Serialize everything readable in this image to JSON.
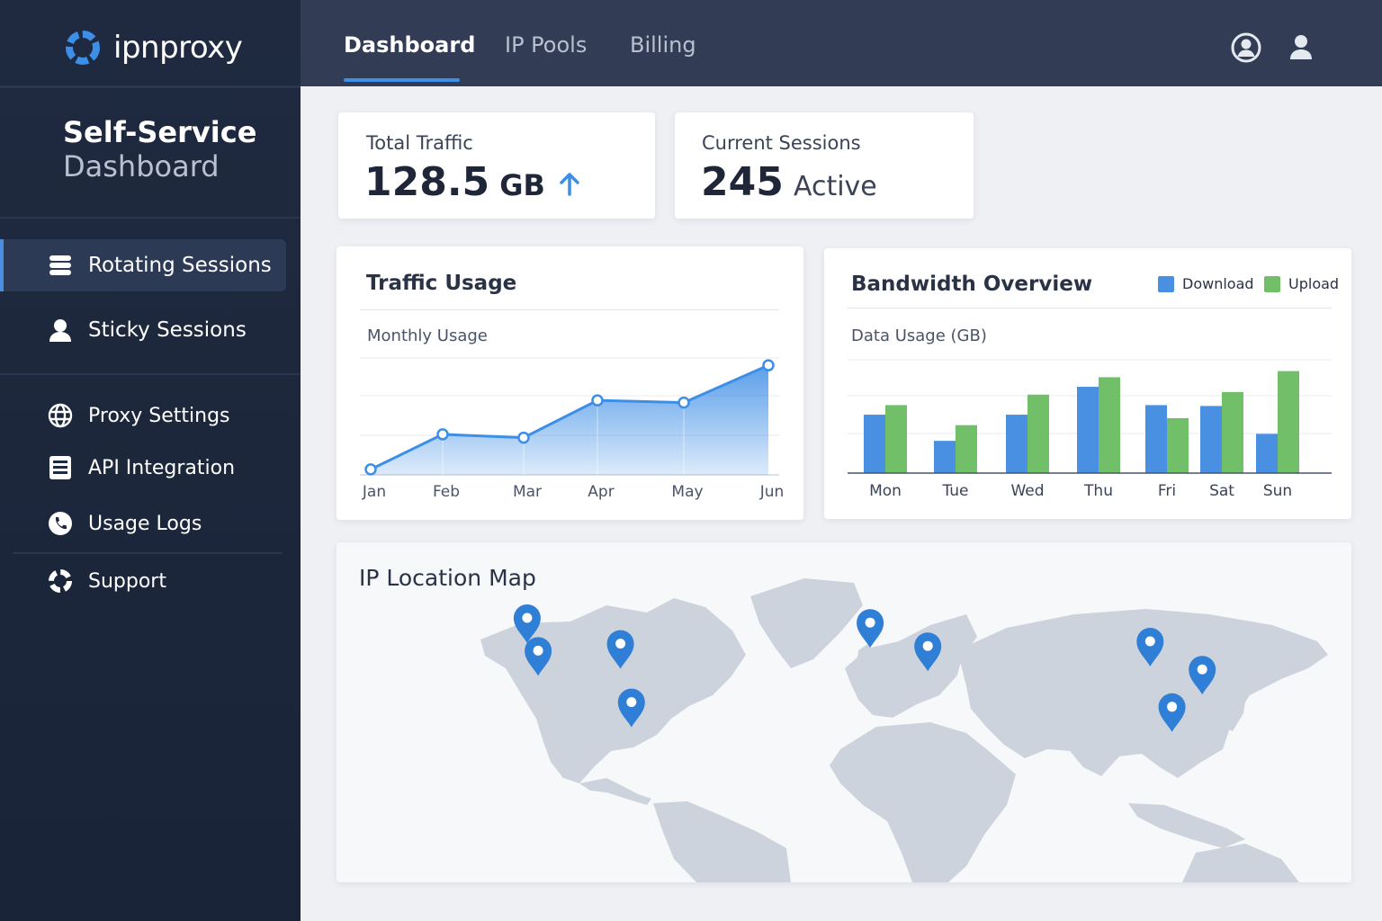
{
  "app": {
    "logo_text": "ipnproxy",
    "brand_color": "#3d8ee6"
  },
  "sidebar": {
    "title_line1": "Self-Service",
    "title_line2": "Dashboard",
    "primary_items": [
      {
        "label": "Rotating Sessions",
        "icon": "database-stack-icon",
        "active": true
      },
      {
        "label": "Sticky Sessions",
        "icon": "user-icon",
        "active": false
      }
    ],
    "secondary_items": [
      {
        "label": "Proxy Settings",
        "icon": "globe-icon"
      },
      {
        "label": "API Integration",
        "icon": "document-list-icon"
      },
      {
        "label": "Usage Logs",
        "icon": "phone-badge-icon"
      }
    ],
    "support": {
      "label": "Support",
      "icon": "lifebuoy-icon"
    }
  },
  "topbar": {
    "tabs": [
      {
        "label": "Dashboard",
        "active": true
      },
      {
        "label": "IP Pools",
        "active": false
      },
      {
        "label": "Billing",
        "active": false
      }
    ],
    "icons": [
      "account-circle-icon",
      "user-profile-icon"
    ]
  },
  "stats": {
    "total_traffic": {
      "label": "Total Traffic",
      "value": "128.5",
      "unit": "GB",
      "trend": "up"
    },
    "current_sessions": {
      "label": "Current Sessions",
      "value": "245",
      "unit": "Active"
    }
  },
  "traffic_usage": {
    "title": "Traffic Usage",
    "subtitle": "Monthly Usage"
  },
  "bandwidth": {
    "title": "Bandwidth Overview",
    "subtitle": "Data Usage (GB)",
    "legend": [
      {
        "label": "Download",
        "color": "#4a90e2"
      },
      {
        "label": "Upload",
        "color": "#72bf6a"
      }
    ]
  },
  "map": {
    "title": "IP Location Map",
    "pin_color": "#2f7fd6",
    "land_color": "#cdd3dc",
    "pins": [
      {
        "lat": 50,
        "lon": -122
      },
      {
        "lat": 36,
        "lon": -118
      },
      {
        "lat": 39,
        "lon": -88
      },
      {
        "lat": 14,
        "lon": -84
      },
      {
        "lat": 48,
        "lon": 3
      },
      {
        "lat": 38,
        "lon": 24
      },
      {
        "lat": 40,
        "lon": 105
      },
      {
        "lat": 28,
        "lon": 124
      },
      {
        "lat": 12,
        "lon": 113
      }
    ]
  },
  "chart_data": [
    {
      "type": "area",
      "title": "Traffic Usage",
      "subtitle": "Monthly Usage",
      "categories": [
        "Jan",
        "Feb",
        "Mar",
        "Apr",
        "May",
        "Jun"
      ],
      "values": [
        5,
        37,
        34,
        68,
        66,
        100
      ],
      "ylim": [
        0,
        110
      ],
      "grid": true,
      "color": "#3d8ee6"
    },
    {
      "type": "bar",
      "title": "Bandwidth Overview",
      "ylabel": "Data Usage (GB)",
      "categories": [
        "Mon",
        "Tue",
        "Wed",
        "Thu",
        "Fri",
        "Sat",
        "Sun"
      ],
      "series": [
        {
          "name": "Download",
          "values": [
            67,
            37,
            67,
            99,
            78,
            77,
            45
          ],
          "color": "#4a90e2"
        },
        {
          "name": "Upload",
          "values": [
            78,
            55,
            90,
            110,
            63,
            93,
            117
          ],
          "color": "#72bf6a"
        }
      ],
      "ylim": [
        0,
        130
      ],
      "grid": true,
      "legend_position": "top-right"
    }
  ]
}
